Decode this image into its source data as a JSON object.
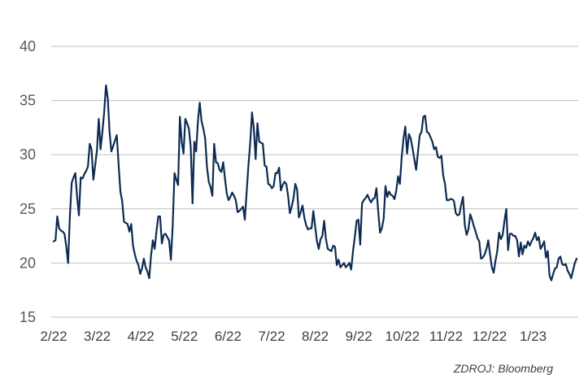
{
  "source_note": "ZDROJ: Bloomberg",
  "colors": {
    "line": "#0d2b52",
    "grid": "#bfbfbf",
    "text": "#595959"
  },
  "chart_data": {
    "type": "line",
    "title": "",
    "xlabel": "",
    "ylabel": "",
    "ylim": [
      15,
      40
    ],
    "yticks": [
      15,
      20,
      25,
      30,
      35,
      40
    ],
    "xticks": [
      "2/22",
      "3/22",
      "4/22",
      "5/22",
      "6/22",
      "7/22",
      "8/22",
      "9/22",
      "10/22",
      "11/22",
      "12/22",
      "1/23"
    ],
    "grid": "horizontal",
    "legend": "none",
    "series": [
      {
        "values": [
          22.0,
          22.1,
          24.3,
          23.2,
          23.0,
          22.9,
          22.7,
          21.5,
          20.0,
          24.4,
          27.4,
          27.9,
          28.3,
          26.1,
          24.4,
          27.9,
          27.8,
          28.2,
          28.5,
          28.9,
          31.0,
          30.5,
          27.7,
          29.0,
          30.4,
          33.3,
          30.5,
          32.1,
          33.9,
          36.4,
          35.2,
          32.1,
          30.3,
          30.8,
          31.3,
          31.8,
          29.1,
          26.6,
          25.7,
          23.8,
          23.7,
          23.6,
          22.9,
          23.6,
          21.6,
          20.8,
          20.2,
          19.8,
          19.0,
          19.5,
          20.4,
          19.6,
          19.2,
          18.6,
          20.7,
          22.1,
          21.3,
          22.9,
          24.3,
          24.3,
          21.8,
          22.6,
          22.7,
          22.4,
          22.1,
          20.3,
          23.4,
          28.3,
          27.7,
          27.2,
          33.5,
          31.2,
          30.1,
          33.3,
          32.9,
          32.4,
          30.7,
          25.5,
          31.2,
          30.3,
          33.1,
          34.8,
          33.1,
          32.4,
          31.5,
          28.9,
          27.5,
          27.0,
          26.2,
          31.0,
          29.3,
          29.2,
          28.6,
          28.4,
          29.3,
          27.8,
          26.4,
          25.8,
          26.1,
          26.5,
          26.2,
          25.8,
          24.7,
          24.8,
          25.0,
          25.2,
          24.0,
          26.5,
          29.0,
          31.1,
          33.9,
          32.4,
          29.6,
          32.9,
          31.2,
          31.1,
          31.0,
          29.0,
          28.9,
          27.3,
          27.2,
          26.9,
          27.1,
          28.3,
          28.3,
          28.8,
          26.7,
          27.2,
          27.5,
          27.3,
          26.2,
          24.6,
          25.2,
          26.0,
          27.3,
          26.8,
          24.2,
          24.7,
          25.3,
          24.2,
          23.5,
          23.1,
          23.2,
          23.2,
          24.8,
          23.4,
          22.0,
          21.3,
          22.2,
          22.5,
          23.9,
          22.2,
          21.3,
          21.2,
          21.1,
          21.6,
          21.5,
          19.8,
          20.3,
          19.6,
          19.8,
          20.0,
          19.6,
          19.8,
          20.0,
          19.4,
          21.1,
          22.4,
          23.9,
          24.0,
          21.7,
          25.5,
          25.8,
          26.0,
          26.3,
          25.9,
          25.6,
          25.9,
          26.0,
          26.9,
          24.7,
          22.8,
          23.2,
          24.1,
          27.1,
          26.1,
          26.6,
          26.3,
          26.2,
          25.9,
          26.7,
          28.0,
          27.3,
          29.8,
          31.5,
          32.6,
          30.1,
          31.9,
          31.5,
          30.6,
          29.6,
          28.6,
          30.2,
          31.8,
          32.1,
          33.5,
          33.6,
          32.1,
          32.0,
          31.6,
          31.2,
          30.5,
          30.7,
          29.8,
          29.7,
          29.9,
          28.1,
          27.3,
          25.8,
          25.8,
          25.9,
          25.9,
          25.7,
          24.6,
          24.4,
          24.5,
          25.4,
          26.1,
          23.5,
          22.6,
          23.1,
          24.5,
          24.0,
          23.4,
          22.9,
          22.3,
          22.0,
          20.4,
          20.5,
          20.8,
          21.3,
          22.1,
          20.8,
          19.6,
          19.1,
          20.2,
          21.1,
          22.8,
          22.2,
          22.6,
          23.9,
          25.0,
          21.2,
          22.7,
          22.7,
          22.5,
          22.5,
          22.1,
          20.6,
          21.9,
          20.8,
          21.6,
          21.4,
          22.0,
          21.6,
          22.0,
          22.3,
          22.8,
          22.1,
          22.4,
          21.3,
          21.6,
          22.0,
          20.5,
          21.1,
          18.8,
          18.4,
          19.0,
          19.5,
          19.6,
          20.4,
          20.6,
          19.9,
          19.8,
          19.9,
          19.3,
          19.0,
          18.6,
          19.3,
          20.0,
          20.4
        ]
      }
    ]
  }
}
